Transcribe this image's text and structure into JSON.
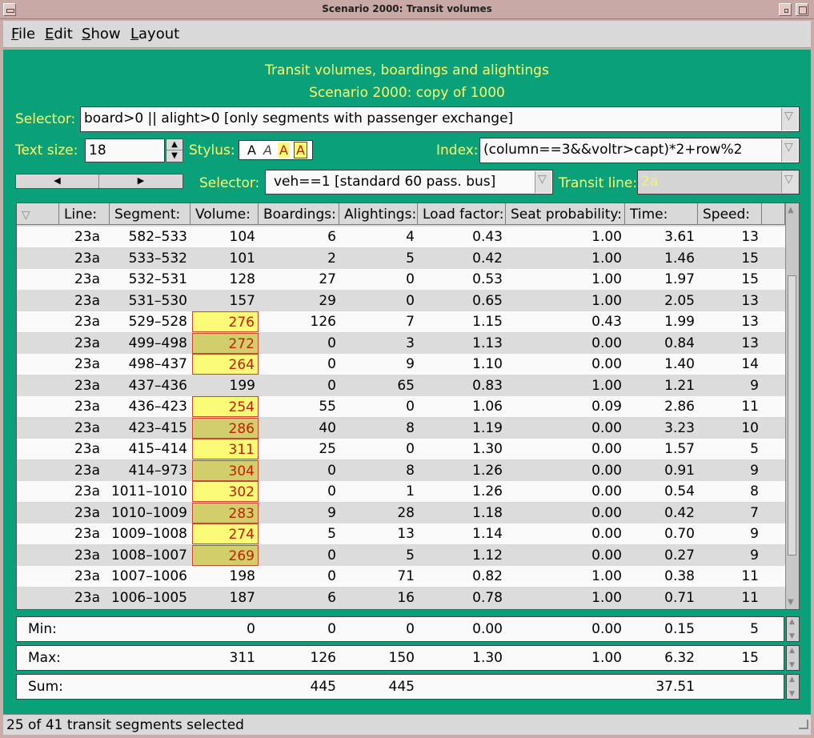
{
  "window": {
    "title": "Scenario 2000: Transit volumes"
  },
  "menu": [
    "File",
    "Edit",
    "Show",
    "Layout"
  ],
  "heading": {
    "line1": "Transit volumes, boardings and alightings",
    "line2": "Scenario 2000: copy of 1000"
  },
  "selector": {
    "label": "Selector:",
    "value": "board>0 || alight>0 [only segments with passenger exchange]"
  },
  "text_size": {
    "label": "Text size:",
    "value": "18"
  },
  "stylus": {
    "label": "Stylus:"
  },
  "index": {
    "label": "Index:",
    "value": "(column==3&&voltr>capt)*2+row%2"
  },
  "vehicle_selector": {
    "label": "Selector:",
    "value": "veh==1 [standard 60 pass. bus]"
  },
  "transit_line": {
    "label": "Transit line:",
    "value": "2a"
  },
  "table": {
    "headers": [
      "Line:",
      "Segment:",
      "Volume:",
      "Boardings:",
      "Alightings:",
      "Load factor:",
      "Seat probability:",
      "Time:",
      "Speed:"
    ],
    "rows": [
      [
        "23a",
        "582–533",
        "104",
        "6",
        "4",
        "0.43",
        "1.00",
        "3.61",
        "13"
      ],
      [
        "23a",
        "533–532",
        "101",
        "2",
        "5",
        "0.42",
        "1.00",
        "1.46",
        "15"
      ],
      [
        "23a",
        "532–531",
        "128",
        "27",
        "0",
        "0.53",
        "1.00",
        "1.97",
        "15"
      ],
      [
        "23a",
        "531–530",
        "157",
        "29",
        "0",
        "0.65",
        "1.00",
        "2.05",
        "13"
      ],
      [
        "23a",
        "529–528",
        "276",
        "126",
        "7",
        "1.15",
        "0.43",
        "1.99",
        "13"
      ],
      [
        "23a",
        "499–498",
        "272",
        "0",
        "3",
        "1.13",
        "0.00",
        "0.84",
        "13"
      ],
      [
        "23a",
        "498–437",
        "264",
        "0",
        "9",
        "1.10",
        "0.00",
        "1.40",
        "14"
      ],
      [
        "23a",
        "437–436",
        "199",
        "0",
        "65",
        "0.83",
        "1.00",
        "1.21",
        "9"
      ],
      [
        "23a",
        "436–423",
        "254",
        "55",
        "0",
        "1.06",
        "0.09",
        "2.86",
        "11"
      ],
      [
        "23a",
        "423–415",
        "286",
        "40",
        "8",
        "1.19",
        "0.00",
        "3.23",
        "10"
      ],
      [
        "23a",
        "415–414",
        "311",
        "25",
        "0",
        "1.30",
        "0.00",
        "1.57",
        "5"
      ],
      [
        "23a",
        "414–973",
        "304",
        "0",
        "8",
        "1.26",
        "0.00",
        "0.91",
        "9"
      ],
      [
        "23a",
        "1011–1010",
        "302",
        "0",
        "1",
        "1.26",
        "0.00",
        "0.54",
        "8"
      ],
      [
        "23a",
        "1010–1009",
        "283",
        "9",
        "28",
        "1.18",
        "0.00",
        "0.42",
        "7"
      ],
      [
        "23a",
        "1009–1008",
        "274",
        "5",
        "13",
        "1.14",
        "0.00",
        "0.70",
        "9"
      ],
      [
        "23a",
        "1008–1007",
        "269",
        "0",
        "5",
        "1.12",
        "0.00",
        "0.27",
        "9"
      ],
      [
        "23a",
        "1007–1006",
        "198",
        "0",
        "71",
        "0.82",
        "1.00",
        "0.38",
        "11"
      ],
      [
        "23a",
        "1006–1005",
        "187",
        "6",
        "16",
        "0.78",
        "1.00",
        "0.71",
        "11"
      ]
    ],
    "flagged_rows": [
      4,
      5,
      6,
      8,
      9,
      10,
      11,
      12,
      13,
      14,
      15
    ]
  },
  "summary": {
    "min": {
      "label": "Min:",
      "values": [
        "0",
        "0",
        "0",
        "0.00",
        "0.00",
        "0.15",
        "5"
      ]
    },
    "max": {
      "label": "Max:",
      "values": [
        "311",
        "126",
        "150",
        "1.30",
        "1.00",
        "6.32",
        "15"
      ]
    },
    "sum": {
      "label": "Sum:",
      "values": [
        "",
        "445",
        "445",
        "",
        "",
        "37.51",
        ""
      ]
    }
  },
  "status": "25 of 41 transit segments selected",
  "colors": {
    "panel": "#0aa17a",
    "label": "#ffff6e",
    "row_white": "#fafafa",
    "row_gray": "#dcdcdc",
    "flag_odd": "#fbfb78",
    "flag_even": "#d2ce6c",
    "flag_text": "#c41e00"
  }
}
